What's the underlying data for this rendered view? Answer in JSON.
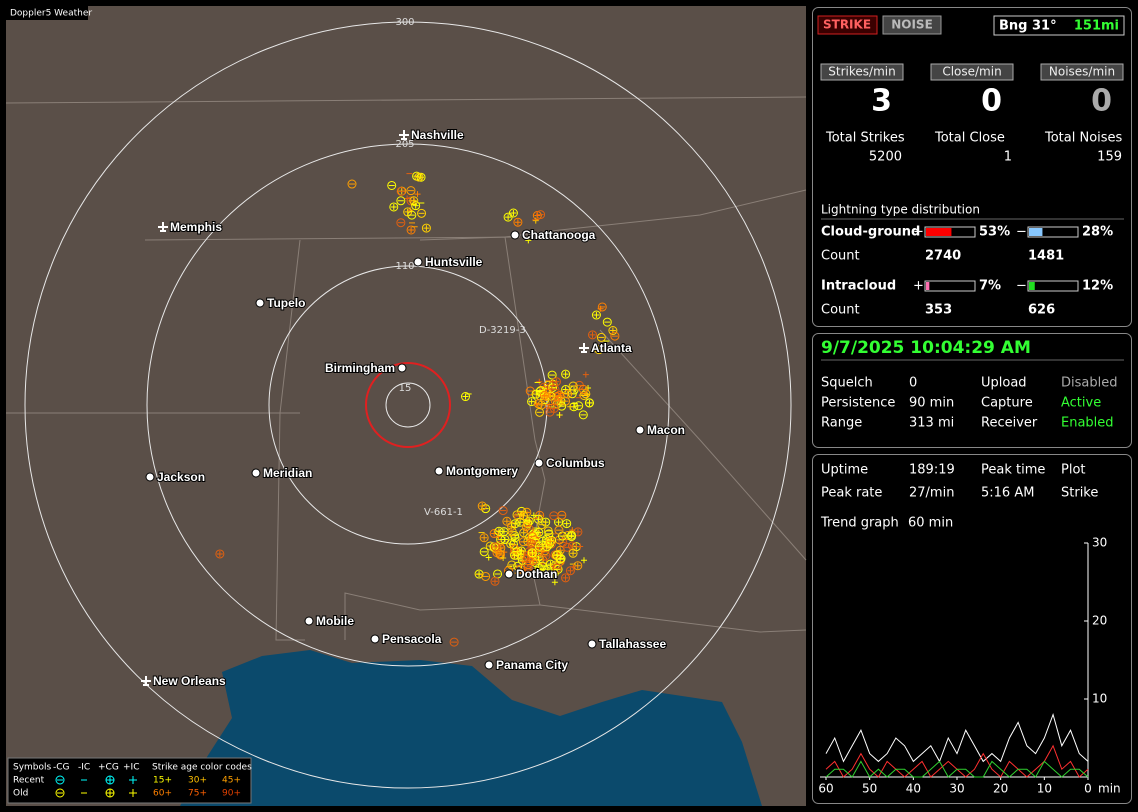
{
  "app_title": "Doppler5 Weather",
  "map": {
    "range_rings": [
      300,
      205,
      110,
      15
    ],
    "cities": [
      "Nashville",
      "Memphis",
      "Chattanooga",
      "Huntsville",
      "Tupelo",
      "Birmingham",
      "Atlanta",
      "Macon",
      "Columbus",
      "Montgomery",
      "Meridian",
      "Jackson",
      "Mobile",
      "Pensacola",
      "Tallahassee",
      "Panama City",
      "Dothan",
      "New Orleans"
    ],
    "storm_labels": [
      "D-3219-3",
      "V-661-1"
    ]
  },
  "legend": {
    "symbols": "Symbols",
    "types": [
      "-CG",
      "-IC",
      "+CG",
      "+IC"
    ],
    "age_title": "Strike age color codes",
    "recent": "Recent",
    "old": "Old",
    "recent_ages": [
      "15+",
      "30+",
      "45+"
    ],
    "old_ages": [
      "60+",
      "75+",
      "90+"
    ]
  },
  "status": {
    "strike_button": "STRIKE",
    "noise_button": "NOISE",
    "bearing": "Bng 31°",
    "distance": "151mi",
    "rates": [
      {
        "label": "Strikes/min",
        "value": 3
      },
      {
        "label": "Close/min",
        "value": 0
      },
      {
        "label": "Noises/min",
        "value": 0
      }
    ],
    "totals": [
      {
        "label": "Total Strikes",
        "value": 5200
      },
      {
        "label": "Total Close",
        "value": 1
      },
      {
        "label": "Total Noises",
        "value": 159
      }
    ],
    "distribution_title": "Lightning type distribution",
    "cloud_ground": {
      "label": "Cloud-ground",
      "plus_sign": "+",
      "minus_sign": "−",
      "plus_pct": {
        "value": 53,
        "label": "53%"
      },
      "minus_pct": {
        "value": 28,
        "label": "28%"
      },
      "count_label": "Count",
      "plus_count": 2740,
      "minus_count": 1481
    },
    "intracloud": {
      "label": "Intracloud",
      "plus_sign": "+",
      "minus_sign": "−",
      "plus_pct": {
        "value": 7,
        "label": "7%"
      },
      "minus_pct": {
        "value": 12,
        "label": "12%"
      },
      "count_label": "Count",
      "plus_count": 353,
      "minus_count": 626
    }
  },
  "settings": {
    "datetime": "9/7/2025 10:04:29 AM",
    "rows": [
      [
        "Squelch",
        "0",
        "Upload",
        "Disabled"
      ],
      [
        "Persistence",
        "90 min",
        "Capture",
        "Active"
      ],
      [
        "Range",
        "313 mi",
        "Receiver",
        "Enabled"
      ]
    ]
  },
  "stats": {
    "rows": [
      [
        "Uptime",
        "189:19",
        "Peak time",
        "Plot"
      ],
      [
        "Peak rate",
        "27/min",
        "5:16 AM",
        "Strike"
      ]
    ],
    "trend_label": "Trend graph",
    "trend_window": "60 min"
  },
  "trend": {
    "xlim": [
      60,
      0
    ],
    "ylim": [
      0,
      30
    ],
    "xticks": [
      60,
      50,
      40,
      30,
      20,
      10,
      0
    ],
    "yticks": [
      30,
      20,
      10
    ],
    "x_unit": "min",
    "x": [
      60,
      58,
      56,
      54,
      52,
      50,
      48,
      46,
      44,
      42,
      40,
      38,
      36,
      34,
      32,
      30,
      28,
      26,
      24,
      22,
      20,
      18,
      16,
      14,
      12,
      10,
      8,
      6,
      4,
      2,
      0
    ],
    "series": [
      {
        "color": "#ffffff",
        "values": [
          3,
          5,
          2,
          4,
          6,
          3,
          2,
          3,
          5,
          4,
          2,
          3,
          4,
          2,
          5,
          3,
          6,
          4,
          2,
          3,
          2,
          5,
          7,
          4,
          3,
          5,
          8,
          4,
          6,
          3,
          2
        ]
      },
      {
        "color": "#ff3030",
        "values": [
          1,
          2,
          0,
          1,
          3,
          1,
          0,
          2,
          1,
          0,
          1,
          2,
          0,
          1,
          2,
          1,
          0,
          1,
          3,
          1,
          0,
          2,
          1,
          0,
          1,
          2,
          4,
          1,
          2,
          0,
          1
        ]
      },
      {
        "color": "#30d030",
        "values": [
          0,
          1,
          1,
          0,
          2,
          0,
          1,
          0,
          1,
          1,
          0,
          0,
          1,
          2,
          0,
          1,
          1,
          0,
          0,
          2,
          1,
          0,
          1,
          1,
          0,
          2,
          1,
          0,
          1,
          1,
          0
        ]
      }
    ]
  }
}
